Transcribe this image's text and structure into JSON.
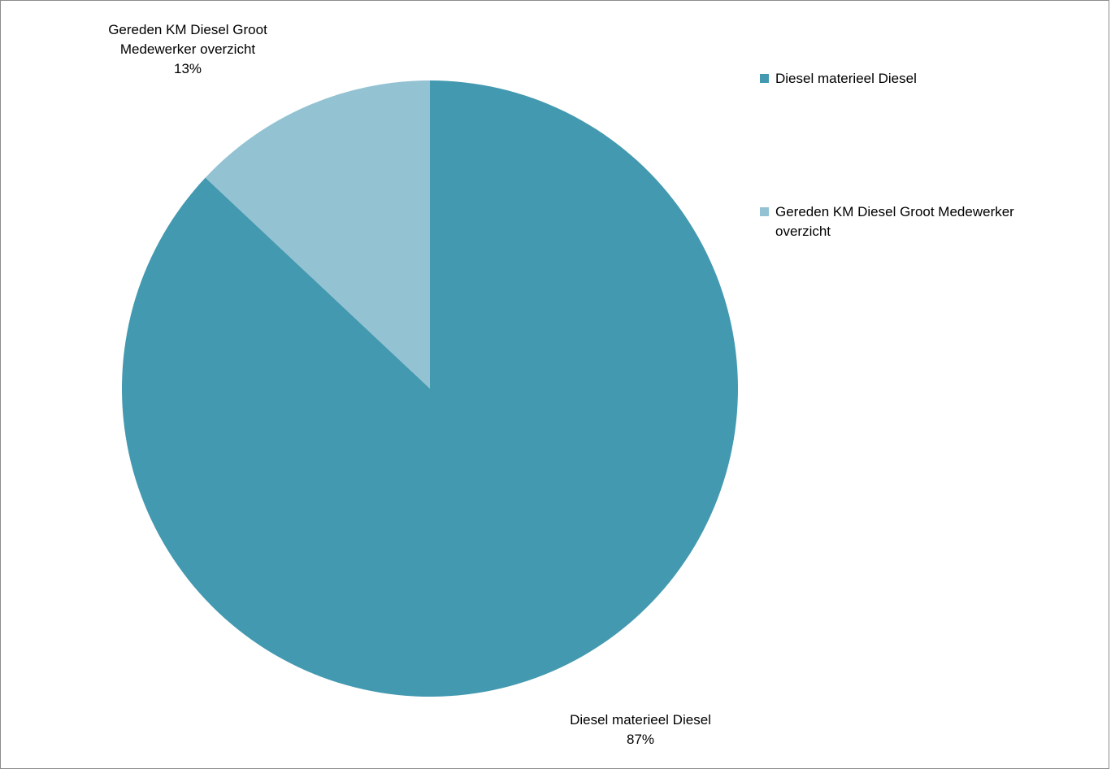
{
  "chart_data": {
    "type": "pie",
    "title": "",
    "legend_position": "right",
    "start_angle_deg": 0,
    "direction": "clockwise",
    "slices": [
      {
        "label": "Diesel materieel Diesel",
        "percent": 87,
        "percent_text": "87%",
        "color": "#4399b0"
      },
      {
        "label": "Gereden KM Diesel Groot Medewerker overzicht",
        "percent": 13,
        "percent_text": "13%",
        "color": "#93c2d3",
        "label_lines": [
          "Gereden KM Diesel Groot",
          "Medewerker overzicht"
        ]
      }
    ],
    "legend": [
      {
        "label": "Diesel materieel Diesel",
        "color": "#4399b0"
      },
      {
        "label": "Gereden KM Diesel Groot Medewerker overzicht",
        "color": "#93c2d3"
      }
    ]
  }
}
